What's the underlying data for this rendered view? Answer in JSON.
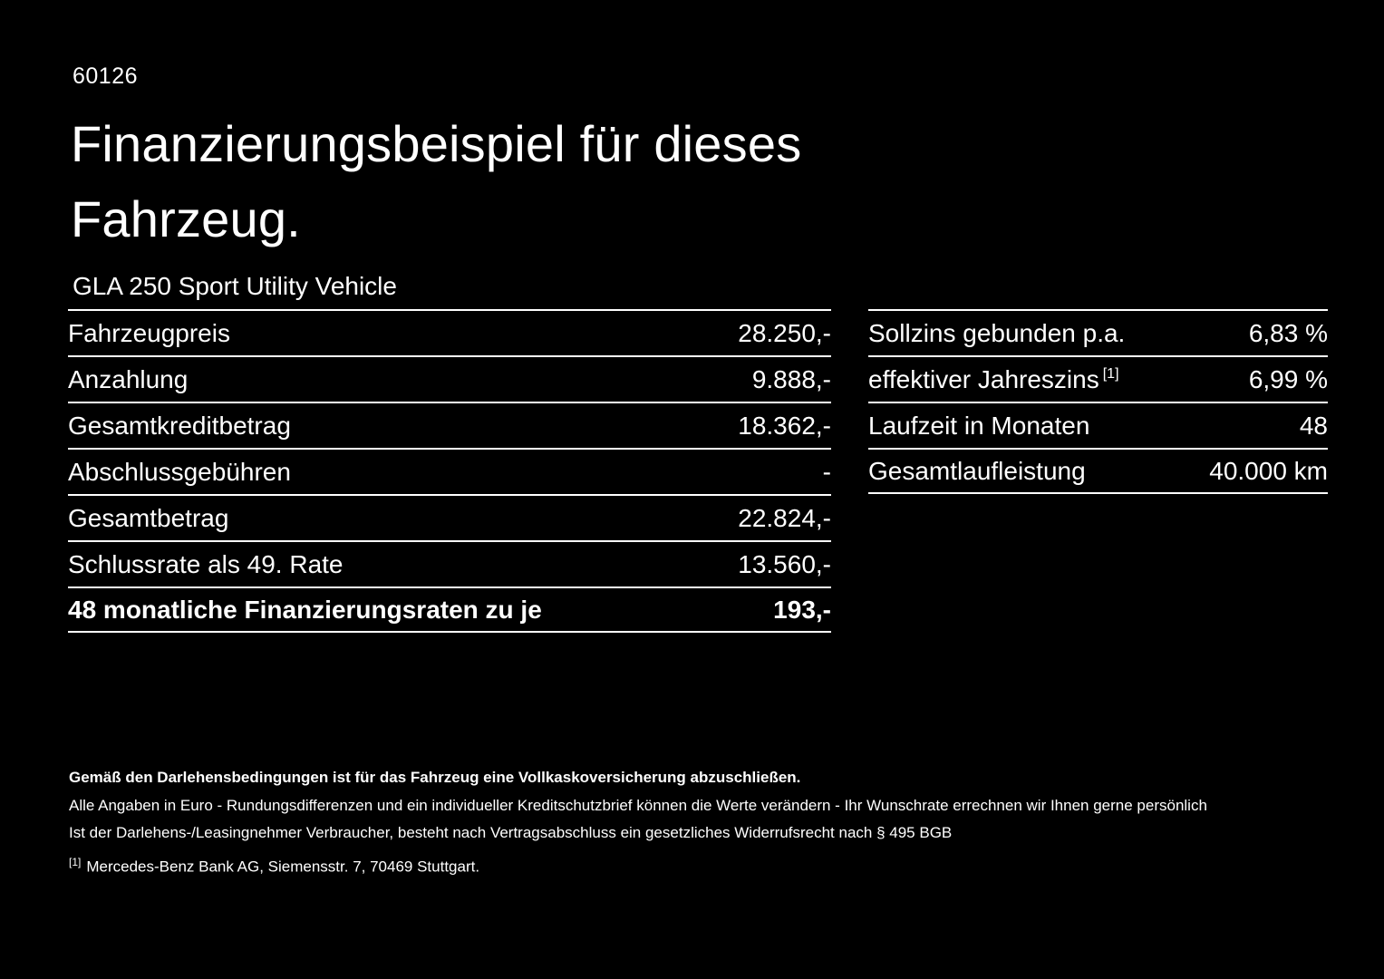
{
  "page": {
    "doc_id": "60126",
    "title": "Finanzierungsbeispiel für dieses Fahrzeug.",
    "vehicle": "GLA 250 Sport Utility Vehicle"
  },
  "left_table": {
    "rows": [
      {
        "label": "Fahrzeugpreis",
        "value": "28.250,-"
      },
      {
        "label": "Anzahlung",
        "value": "9.888,-"
      },
      {
        "label": "Gesamtkreditbetrag",
        "value": "18.362,-"
      },
      {
        "label": "Abschlussgebühren",
        "value": "-"
      },
      {
        "label": "Gesamtbetrag",
        "value": "22.824,-"
      },
      {
        "label": "Schlussrate als 49. Rate",
        "value": "13.560,-"
      },
      {
        "label": "48 monatliche Finanzierungsraten zu je",
        "value": "193,-"
      }
    ]
  },
  "right_table": {
    "rows": [
      {
        "label": "Sollzins gebunden p.a.",
        "sup": "",
        "value": "6,83 %"
      },
      {
        "label": "effektiver Jahreszins",
        "sup": "[1]",
        "value": "6,99 %"
      },
      {
        "label": "Laufzeit in Monaten",
        "sup": "",
        "value": "48"
      },
      {
        "label": "Gesamtlaufleistung",
        "sup": "",
        "value": "40.000 km"
      }
    ]
  },
  "footer": {
    "bold_note": "Gemäß den Darlehensbedingungen ist für das Fahrzeug eine Vollkaskoversicherung abzuschließen.",
    "note1": "Alle Angaben in Euro - Rundungsdifferenzen und ein individueller Kreditschutzbrief können die Werte verändern - Ihr Wunschrate errechnen wir Ihnen gerne persönlich",
    "note2": "Ist der Darlehens-/Leasingnehmer Verbraucher, besteht nach Vertragsabschluss ein gesetzliches Widerrufsrecht nach § 495 BGB",
    "footnote_marker": "[1]",
    "footnote": "Mercedes-Benz Bank AG, Siemensstr. 7, 70469 Stuttgart."
  },
  "colors": {
    "background": "#000000",
    "text": "#ffffff",
    "divider": "#ffffff"
  }
}
